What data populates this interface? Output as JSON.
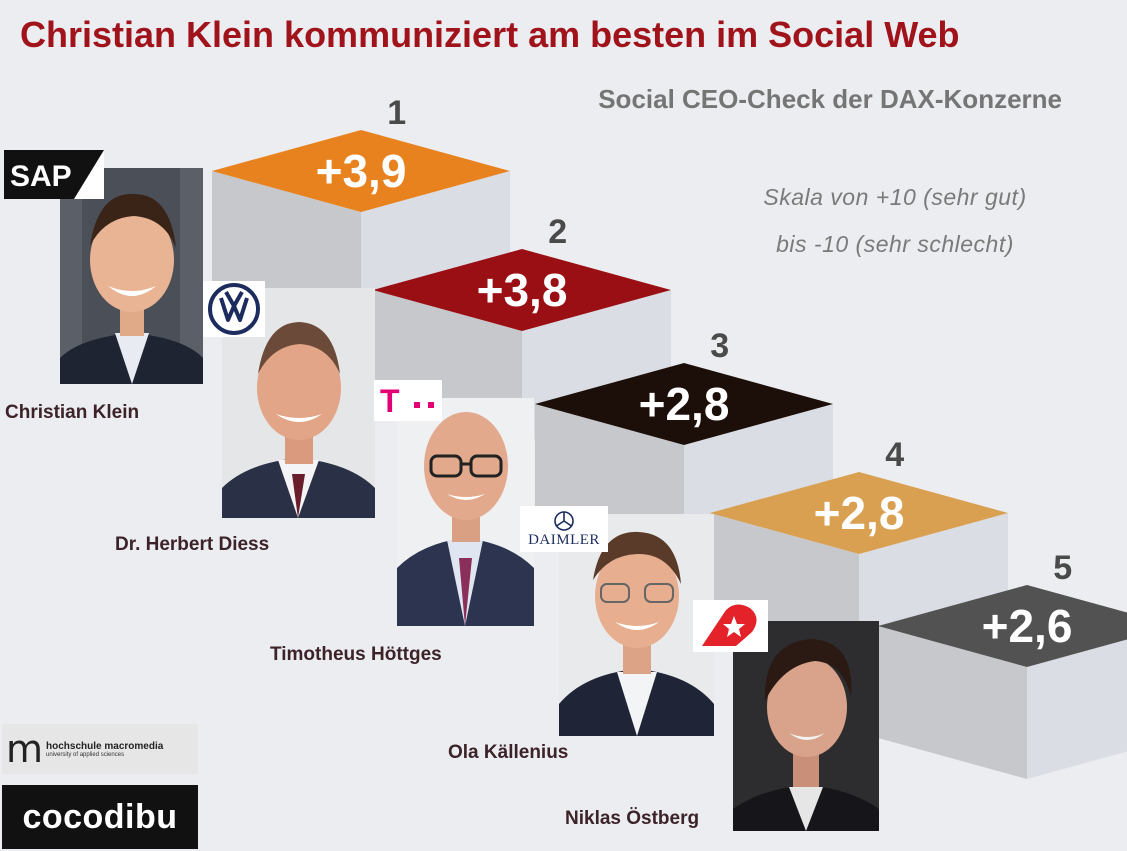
{
  "header": {
    "title": "Christian Klein kommuniziert am besten im Social Web",
    "subtitle": "Social CEO-Check der DAX-Konzerne"
  },
  "scale": {
    "line1": "Skala von +10 (sehr gut)",
    "line2": "bis -10 (sehr schlecht)"
  },
  "colors": {
    "title": "#a1131b",
    "step_top": [
      "#e8821e",
      "#9a0f14",
      "#1c0f0a",
      "#d9a052",
      "#525252"
    ],
    "step_left": "#c7c8cb",
    "step_right": "#dadde3"
  },
  "chart_data": {
    "type": "bar",
    "title": "Christian Klein kommuniziert am besten im Social Web",
    "subtitle": "Social CEO-Check der DAX-Konzerne",
    "scale_range": [
      -10,
      10
    ],
    "ranks": [
      "1",
      "2",
      "3",
      "4",
      "5"
    ],
    "categories": [
      "Christian Klein",
      "Dr. Herbert Diess",
      "Timotheus Höttges",
      "Ola Källenius",
      "Niklas Östberg"
    ],
    "values": [
      3.9,
      3.8,
      2.8,
      2.8,
      2.6
    ],
    "value_labels": [
      "+3,9",
      "+3,8",
      "+2,8",
      "+2,8",
      "+2,6"
    ]
  },
  "logos": {
    "sap": "SAP",
    "vw": "vw-logo",
    "telekom": "T",
    "daimler": "DAIMLER",
    "deliveryhero": "delivery-hero-logo"
  },
  "branding": {
    "macromedia": "hochschule macromedia",
    "macromedia_sub": "university of applied sciences",
    "cocodibu": "cocodibu"
  }
}
